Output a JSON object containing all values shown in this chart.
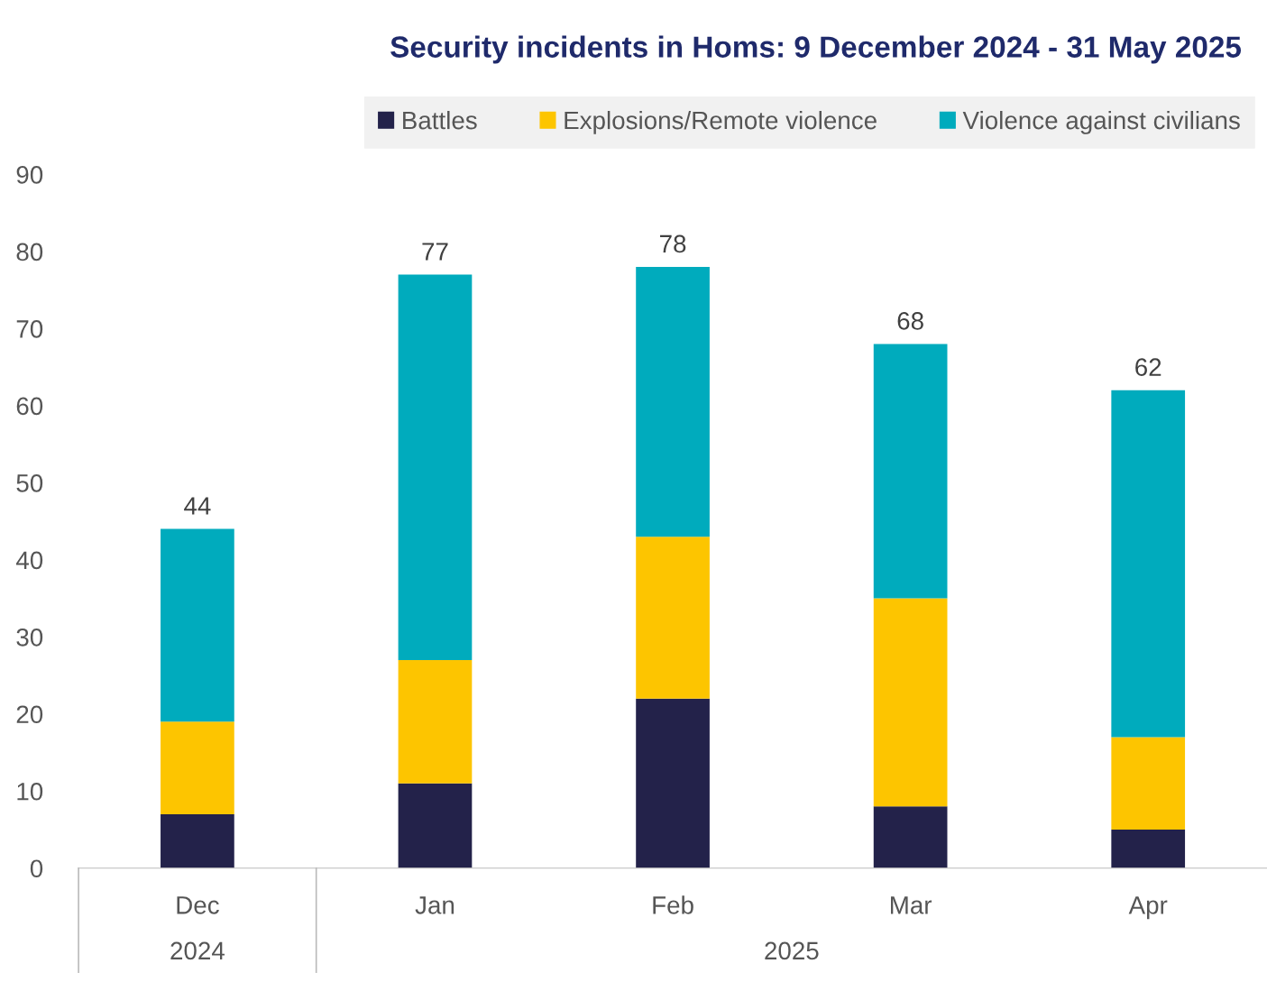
{
  "chart_data": {
    "type": "bar",
    "title": "Security incidents in Homs: 9 December 2024 - 31 May 2025",
    "categories": [
      "Dec",
      "Jan",
      "Feb",
      "Mar",
      "Apr"
    ],
    "stacked": true,
    "series": [
      {
        "name": "Battles",
        "color": "#23224a",
        "values": [
          7,
          11,
          22,
          8,
          5
        ]
      },
      {
        "name": "Explosions/Remote violence",
        "color": "#fdc500",
        "values": [
          12,
          16,
          21,
          27,
          12
        ]
      },
      {
        "name": "Violence against civilians",
        "color": "#00abbd",
        "values": [
          25,
          50,
          35,
          33,
          45
        ]
      }
    ],
    "totals": [
      "44",
      "77",
      "78",
      "68",
      "62"
    ],
    "ylim": [
      0,
      90
    ],
    "yticks": [
      0,
      10,
      20,
      30,
      40,
      50,
      60,
      70,
      80,
      90
    ],
    "annotations": [
      "2024",
      "2025"
    ],
    "grid": false,
    "legend": "top"
  }
}
